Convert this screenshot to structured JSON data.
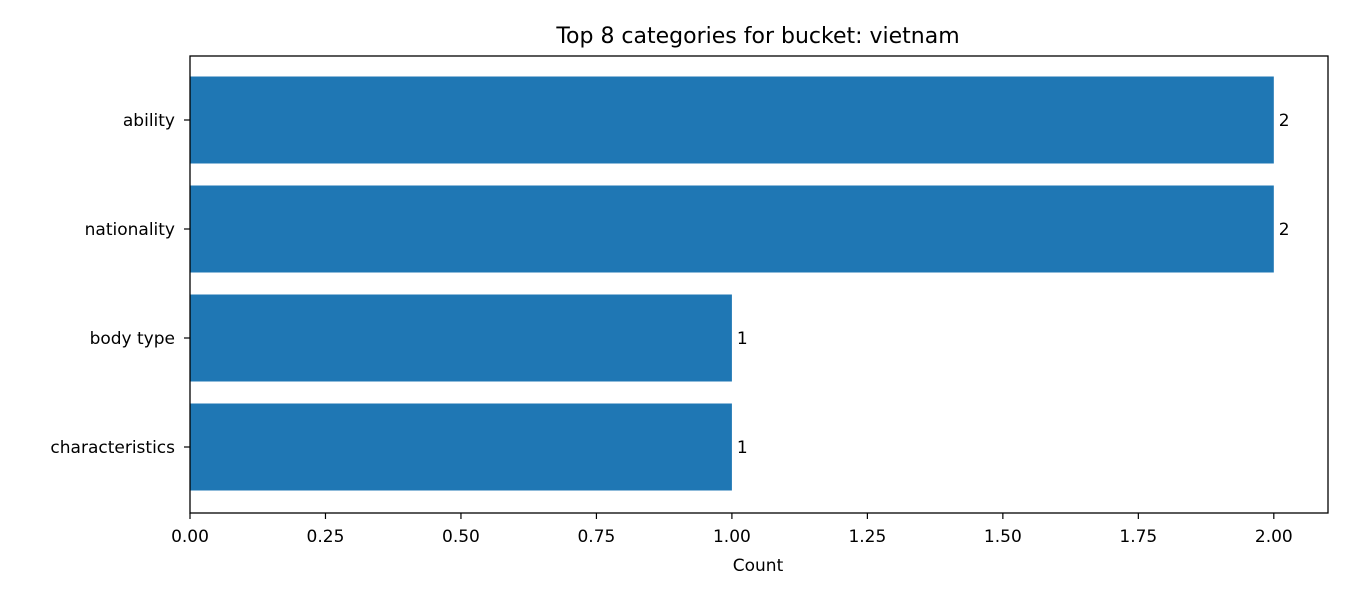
{
  "chart_data": {
    "type": "bar",
    "orientation": "horizontal",
    "title": "Top 8 categories for bucket: vietnam",
    "xlabel": "Count",
    "ylabel": "",
    "categories": [
      "ability",
      "nationality",
      "body type",
      "characteristics"
    ],
    "values": [
      2,
      2,
      1,
      1
    ],
    "value_labels": [
      "2",
      "2",
      "1",
      "1"
    ],
    "xlim": [
      0,
      2.1
    ],
    "xticks": [
      0.0,
      0.25,
      0.5,
      0.75,
      1.0,
      1.25,
      1.5,
      1.75,
      2.0
    ],
    "xtick_labels": [
      "0.00",
      "0.25",
      "0.50",
      "0.75",
      "1.00",
      "1.25",
      "1.50",
      "1.75",
      "2.00"
    ],
    "grid": false,
    "legend": "none",
    "bar_color": "#1f77b4"
  }
}
